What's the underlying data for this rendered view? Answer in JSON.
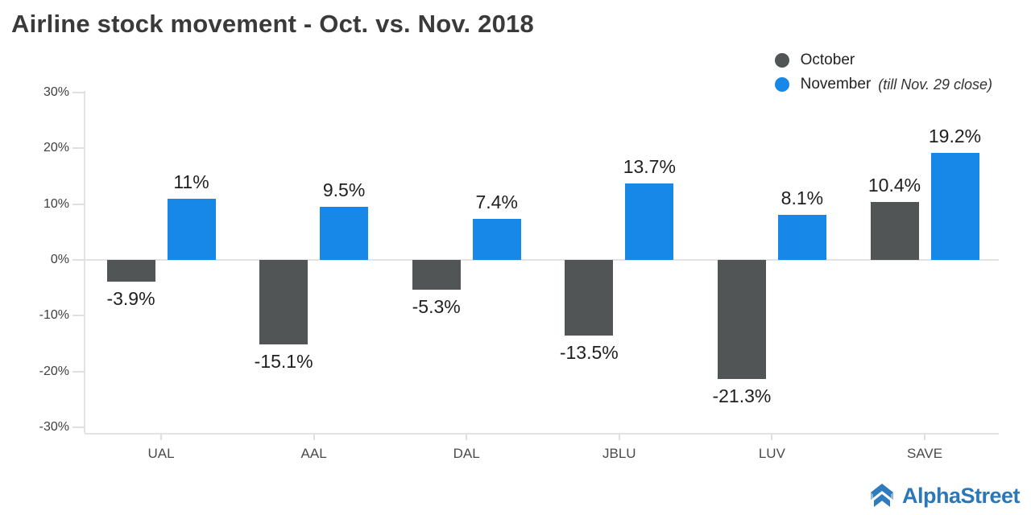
{
  "title": "Airline stock movement - Oct. vs. Nov. 2018",
  "legend": {
    "october_label": "October",
    "november_label": "November",
    "november_note": "(till Nov. 29 close)"
  },
  "chart_data": {
    "type": "bar",
    "title": "Airline stock movement - Oct. vs. Nov. 2018",
    "categories": [
      "UAL",
      "AAL",
      "DAL",
      "JBLU",
      "LUV",
      "SAVE"
    ],
    "series": [
      {
        "name": "October",
        "color": "#515555",
        "values": [
          -3.9,
          -15.1,
          -5.3,
          -13.5,
          -21.3,
          10.4
        ],
        "labels": [
          "-3.9%",
          "-15.1%",
          "-5.3%",
          "-13.5%",
          "-21.3%",
          "10.4%"
        ]
      },
      {
        "name": "November",
        "color": "#1788e8",
        "values": [
          11,
          9.5,
          7.4,
          13.7,
          8.1,
          19.2
        ],
        "labels": [
          "11%",
          "9.5%",
          "7.4%",
          "13.7%",
          "8.1%",
          "19.2%"
        ]
      }
    ],
    "ylim": [
      -30,
      30
    ],
    "ytick_step": 10,
    "ytick_labels": [
      "30%",
      "20%",
      "10%",
      "0%",
      "-10%",
      "-20%",
      "-30%"
    ],
    "xlabel": "",
    "ylabel": "",
    "grid": "zero-line-only",
    "legend_position": "top-right"
  },
  "colors": {
    "october_bar": "#515555",
    "november_bar": "#1788e8",
    "axis": "#e3e3e3",
    "title_text": "#3a3a3a",
    "value_label_text": "#1f1f1f",
    "brand_blue": "#2b77b8"
  },
  "footer": {
    "brand": "AlphaStreet"
  }
}
